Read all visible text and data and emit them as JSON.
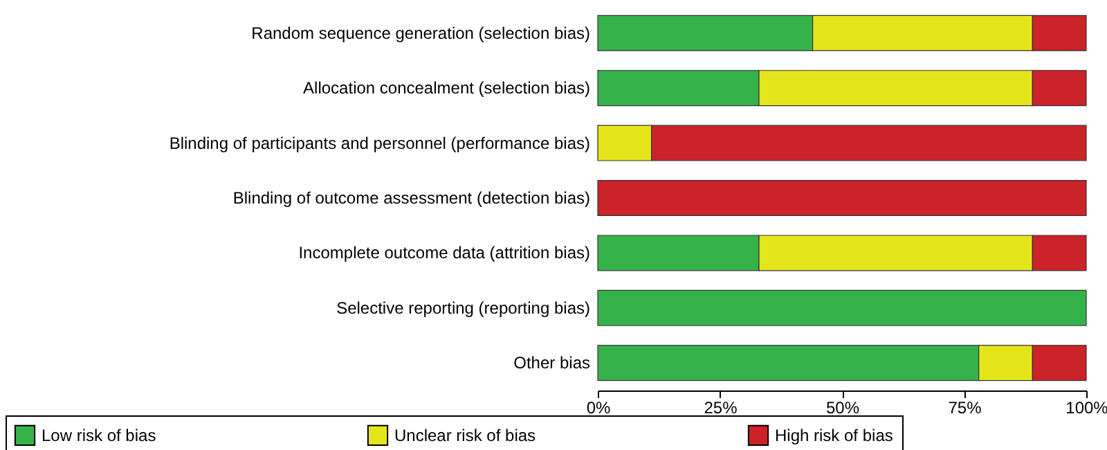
{
  "chart_data": {
    "type": "bar",
    "orientation": "horizontal",
    "stacked": true,
    "categories": [
      "Random sequence generation (selection bias)",
      "Allocation concealment (selection bias)",
      "Blinding of participants and personnel (performance bias)",
      "Blinding of outcome assessment (detection bias)",
      "Incomplete outcome data (attrition bias)",
      "Selective reporting (reporting bias)",
      "Other bias"
    ],
    "series": [
      {
        "name": "Low risk of bias",
        "color": "#35b34a",
        "values": [
          44,
          33,
          0,
          0,
          33,
          100,
          78
        ]
      },
      {
        "name": "Unclear risk of bias",
        "color": "#e5e51c",
        "values": [
          45,
          56,
          11,
          0,
          56,
          0,
          11
        ]
      },
      {
        "name": "High risk of bias",
        "color": "#cc2229",
        "values": [
          11,
          11,
          89,
          100,
          11,
          0,
          11
        ]
      }
    ],
    "xlim": [
      0,
      100
    ],
    "xticks": [
      {
        "value": 0,
        "label": "0%"
      },
      {
        "value": 25,
        "label": "25%"
      },
      {
        "value": 50,
        "label": "50%"
      },
      {
        "value": 75,
        "label": "75%"
      },
      {
        "value": 100,
        "label": "100%"
      }
    ],
    "grid": false,
    "legend": "bottom"
  }
}
